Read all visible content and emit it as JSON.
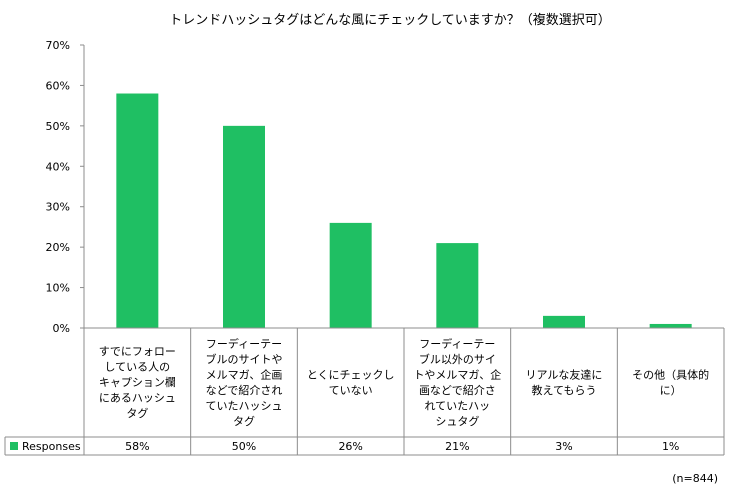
{
  "chart_data": {
    "type": "bar",
    "title": "トレンドハッシュタグはどんな風にチェックしていますか？（複数選択可）",
    "categories": [
      [
        "すでにフォロー",
        "している人の",
        "キャプション欄",
        "にあるハッシュ",
        "タグ"
      ],
      [
        "フーディーテー",
        "ブルのサイトや",
        "メルマガ、企画",
        "などで紹介され",
        "ていたハッシュ",
        "タグ"
      ],
      [
        "とくにチェックし",
        "ていない"
      ],
      [
        "フーディーテー",
        "ブル以外のサイ",
        "トやメルマガ、企",
        "画などで紹介さ",
        "れていたハッ",
        "シュタグ"
      ],
      [
        "リアルな友達に",
        "教えてもらう"
      ],
      [
        "その他（具体的",
        "に）"
      ]
    ],
    "series": [
      {
        "name": "Responses",
        "values": [
          58,
          50,
          26,
          21,
          3,
          1
        ],
        "color": "#1fbf63"
      }
    ],
    "table_values": [
      "58%",
      "50%",
      "26%",
      "21%",
      "3%",
      "1%"
    ],
    "ylim": [
      0,
      70
    ],
    "yticks": [
      "0%",
      "10%",
      "20%",
      "30%",
      "40%",
      "50%",
      "60%",
      "70%"
    ],
    "grid": false,
    "legend": "data-table"
  },
  "note": "(n=844)"
}
